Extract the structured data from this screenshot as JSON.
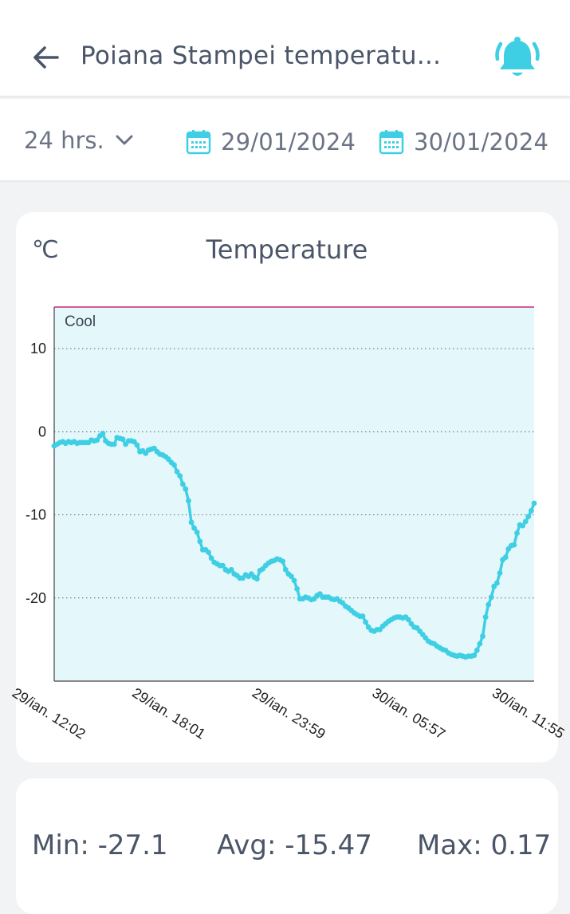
{
  "header": {
    "title": "Poiana Stampei temperatu...",
    "back_icon": "arrow-left-icon",
    "bell_icon": "alarm-bell-icon"
  },
  "filters": {
    "range": "24 hrs.",
    "start_date": "29/01/2024",
    "end_date": "30/01/2024"
  },
  "colors": {
    "accent": "#3ecfe4",
    "zone_fill": "#e4f7fa",
    "threshold": "#d35ba0",
    "text": "#4a5568"
  },
  "stats": {
    "min": "Min: -27.1",
    "avg": "Avg: -15.47",
    "max": "Max: 0.17"
  },
  "chart_data": {
    "type": "line",
    "title": "Temperature",
    "unit": "℃",
    "zone_label": "Cool",
    "zone_range": [
      -30,
      15
    ],
    "ylim": [
      -30,
      15
    ],
    "yticks": [
      10,
      0,
      -10,
      -20
    ],
    "grid": "dotted horizontal",
    "x_tick_labels": [
      "29/ian. 12:02",
      "29/ian. 18:01",
      "29/ian. 23:59",
      "30/ian. 05:57",
      "30/ian. 11:55"
    ],
    "series": [
      {
        "values": [
          -1.7,
          -1.5,
          -1.3,
          -1.2,
          -1.4,
          -1.2,
          -1.3,
          -1.2,
          -1.4,
          -1.3,
          -1.3,
          -1.3,
          -1.3,
          -1.0,
          -1.1,
          -1.0,
          -0.5,
          -0.2,
          -1.1,
          -1.4,
          -1.5,
          -1.5,
          -0.7,
          -0.8,
          -0.9,
          -1.5,
          -1.1,
          -1.1,
          -1.2,
          -1.6,
          -2.4,
          -2.3,
          -2.6,
          -2.2,
          -2.1,
          -2.0,
          -2.4,
          -2.7,
          -2.8,
          -3.0,
          -3.3,
          -3.7,
          -4.0,
          -4.8,
          -5.3,
          -6.3,
          -6.9,
          -8.3,
          -10.9,
          -11.6,
          -12.1,
          -13.2,
          -14.2,
          -14.2,
          -14.5,
          -15.2,
          -15.7,
          -15.9,
          -16.1,
          -16.1,
          -16.6,
          -16.8,
          -16.6,
          -17.1,
          -17.3,
          -17.6,
          -17.6,
          -17.2,
          -17.4,
          -17.1,
          -17.5,
          -17.7,
          -16.7,
          -16.5,
          -16.1,
          -15.8,
          -15.6,
          -15.5,
          -15.3,
          -15.4,
          -15.6,
          -16.6,
          -17.1,
          -17.4,
          -17.9,
          -18.9,
          -20.1,
          -20.1,
          -19.9,
          -20.0,
          -20.2,
          -20.1,
          -19.7,
          -19.5,
          -19.9,
          -19.9,
          -19.9,
          -20.1,
          -20.2,
          -20.1,
          -20.4,
          -20.6,
          -21.0,
          -21.2,
          -21.5,
          -21.8,
          -22.0,
          -22.2,
          -22.2,
          -22.9,
          -23.5,
          -23.9,
          -24.0,
          -23.8,
          -23.8,
          -23.4,
          -23.1,
          -22.8,
          -22.6,
          -22.4,
          -22.3,
          -22.3,
          -22.4,
          -22.3,
          -22.6,
          -23.1,
          -23.5,
          -23.6,
          -24.0,
          -24.4,
          -24.8,
          -25.2,
          -25.4,
          -25.5,
          -25.8,
          -26.0,
          -26.2,
          -26.3,
          -26.6,
          -26.8,
          -26.9,
          -27.0,
          -26.9,
          -27.0,
          -27.1,
          -27.0,
          -27.0,
          -26.9,
          -26.3,
          -25.5,
          -24.6,
          -22.3,
          -20.8,
          -19.9,
          -18.6,
          -18.2,
          -17.0,
          -15.4,
          -15.1,
          -14.1,
          -13.7,
          -13.6,
          -12.2,
          -11.2,
          -11.3,
          -10.8,
          -10.2,
          -9.5,
          -8.6
        ]
      }
    ]
  }
}
